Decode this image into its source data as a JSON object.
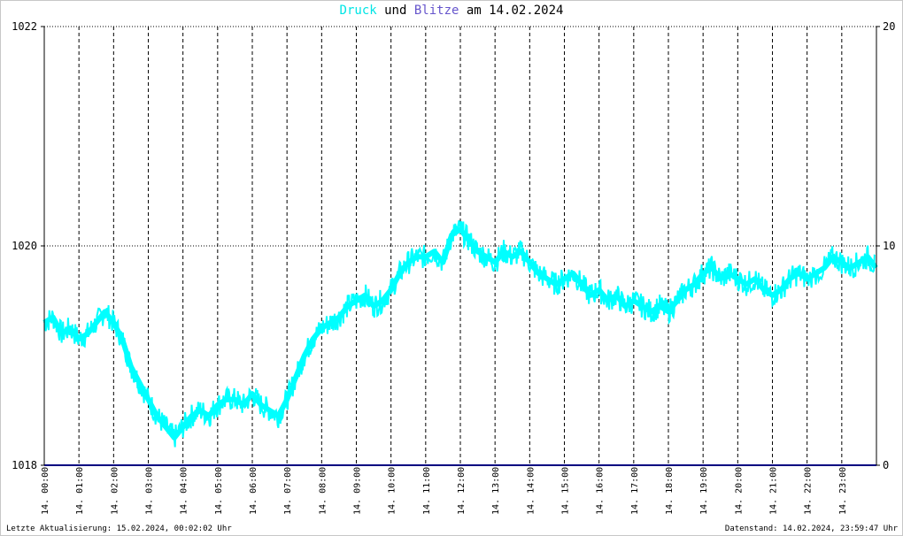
{
  "title": {
    "druck": "Druck",
    "und": "und",
    "blitze": "Blitze",
    "am_date": "am 14.02.2024"
  },
  "footer": {
    "last_update": "Letzte Aktualisierung: 15.02.2024, 00:02:02 Uhr",
    "data_status": "Datenstand: 14.02.2024, 23:59:47 Uhr"
  },
  "colors": {
    "druck": "#00ffff",
    "blitze": "#000080",
    "grid": "#000000",
    "background": "#ffffff"
  },
  "chart_data": {
    "type": "line",
    "title": "Druck und Blitze am 14.02.2024",
    "grid": true,
    "y_left": {
      "min": 1018,
      "max": 1022,
      "ticks": [
        1018,
        1020,
        1022
      ]
    },
    "y_right": {
      "min": 0,
      "max": 20,
      "ticks": [
        0,
        10,
        20
      ]
    },
    "x_range": [
      "00:00",
      "24:00"
    ],
    "x_tick_labels": [
      "14. 00:00",
      "14. 01:00",
      "14. 02:00",
      "14. 03:00",
      "14. 04:00",
      "14. 05:00",
      "14. 06:00",
      "14. 07:00",
      "14. 08:00",
      "14. 09:00",
      "14. 10:00",
      "14. 11:00",
      "14. 12:00",
      "14. 13:00",
      "14. 14:00",
      "14. 15:00",
      "14. 16:00",
      "14. 17:00",
      "14. 18:00",
      "14. 19:00",
      "14. 20:00",
      "14. 21:00",
      "14. 22:00",
      "14. 23:00"
    ],
    "series": [
      {
        "name": "Druck",
        "axis": "left",
        "x": [
          "00:00",
          "00:15",
          "00:30",
          "00:45",
          "01:00",
          "01:15",
          "01:30",
          "01:45",
          "02:00",
          "02:15",
          "02:30",
          "02:45",
          "03:00",
          "03:15",
          "03:30",
          "03:45",
          "04:00",
          "04:15",
          "04:30",
          "04:45",
          "05:00",
          "05:15",
          "05:30",
          "05:45",
          "06:00",
          "06:15",
          "06:30",
          "06:45",
          "07:00",
          "07:15",
          "07:30",
          "07:45",
          "08:00",
          "08:15",
          "08:30",
          "08:45",
          "09:00",
          "09:15",
          "09:30",
          "09:45",
          "10:00",
          "10:15",
          "10:30",
          "10:45",
          "11:00",
          "11:15",
          "11:30",
          "11:45",
          "12:00",
          "12:15",
          "12:30",
          "12:45",
          "13:00",
          "13:15",
          "13:30",
          "13:45",
          "14:00",
          "14:15",
          "14:30",
          "14:45",
          "15:00",
          "15:15",
          "15:30",
          "15:45",
          "16:00",
          "16:15",
          "16:30",
          "16:45",
          "17:00",
          "17:15",
          "17:30",
          "17:45",
          "18:00",
          "18:15",
          "18:30",
          "18:45",
          "19:00",
          "19:15",
          "19:30",
          "19:45",
          "20:00",
          "20:15",
          "20:30",
          "20:45",
          "21:00",
          "21:15",
          "21:30",
          "21:45",
          "22:00",
          "22:30",
          "22:45",
          "23:00",
          "23:15",
          "23:30",
          "23:45",
          "23:59"
        ],
        "values": [
          1019.3,
          1019.35,
          1019.2,
          1019.25,
          1019.15,
          1019.2,
          1019.3,
          1019.4,
          1019.3,
          1019.15,
          1018.9,
          1018.75,
          1018.6,
          1018.45,
          1018.35,
          1018.25,
          1018.35,
          1018.45,
          1018.5,
          1018.45,
          1018.55,
          1018.6,
          1018.6,
          1018.55,
          1018.65,
          1018.55,
          1018.5,
          1018.45,
          1018.6,
          1018.8,
          1019.0,
          1019.15,
          1019.25,
          1019.3,
          1019.35,
          1019.45,
          1019.5,
          1019.55,
          1019.45,
          1019.5,
          1019.6,
          1019.75,
          1019.85,
          1019.9,
          1019.9,
          1019.95,
          1019.85,
          1020.1,
          1020.15,
          1020.05,
          1019.95,
          1019.9,
          1019.85,
          1019.95,
          1019.9,
          1019.95,
          1019.85,
          1019.75,
          1019.7,
          1019.65,
          1019.7,
          1019.75,
          1019.65,
          1019.55,
          1019.6,
          1019.5,
          1019.55,
          1019.45,
          1019.5,
          1019.45,
          1019.4,
          1019.45,
          1019.4,
          1019.5,
          1019.6,
          1019.65,
          1019.75,
          1019.8,
          1019.7,
          1019.75,
          1019.7,
          1019.65,
          1019.7,
          1019.6,
          1019.55,
          1019.6,
          1019.7,
          1019.75,
          1019.7,
          1019.8,
          1019.9,
          1019.85,
          1019.8,
          1019.85,
          1019.9,
          1019.8
        ]
      },
      {
        "name": "Blitze",
        "axis": "right",
        "x": [
          "00:00",
          "24:00"
        ],
        "values": [
          0,
          0
        ]
      }
    ]
  }
}
